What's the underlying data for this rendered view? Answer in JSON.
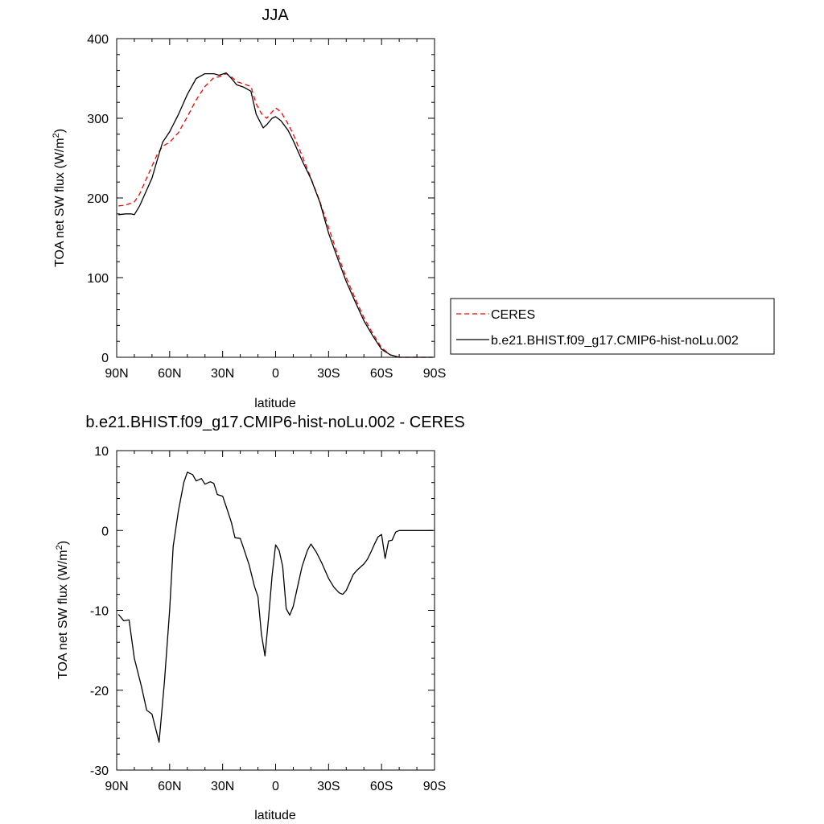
{
  "chart_data": [
    {
      "type": "line",
      "title": "JJA",
      "xlabel": "latitude",
      "ylabel": "TOA net SW flux (W/m",
      "ylabel_sup": "2",
      "ylabel_close": ")",
      "xlim": [
        90,
        -90
      ],
      "ylim": [
        0,
        400
      ],
      "x_ticks": [
        90,
        60,
        30,
        0,
        -30,
        -60,
        -90
      ],
      "x_tick_labels": [
        "90N",
        "60N",
        "30N",
        "0",
        "30S",
        "60S",
        "90S"
      ],
      "y_ticks": [
        0,
        100,
        200,
        300,
        400
      ],
      "y_tick_labels": [
        "0",
        "100",
        "200",
        "300",
        "400"
      ],
      "grid": false,
      "legend_position": "right",
      "series": [
        {
          "name": "CERES",
          "color": "#ff0000",
          "dash": "dashed",
          "x": [
            89,
            85,
            80,
            77,
            73,
            70,
            67,
            64,
            60,
            55,
            50,
            45,
            40,
            35,
            32,
            28,
            25,
            22,
            18,
            14,
            11,
            8,
            5,
            2,
            0,
            -3,
            -7,
            -10,
            -15,
            -20,
            -25,
            -30,
            -35,
            -40,
            -45,
            -50,
            -55,
            -60,
            -65,
            -70,
            -75,
            -80,
            -85,
            -89
          ],
          "y": [
            190,
            191,
            195,
            205,
            225,
            240,
            255,
            265,
            270,
            282,
            302,
            323,
            340,
            351,
            352,
            356,
            352,
            346,
            343,
            340,
            318,
            306,
            300,
            308,
            313,
            308,
            293,
            280,
            253,
            225,
            196,
            163,
            130,
            100,
            74,
            50,
            30,
            12,
            3,
            0,
            0,
            0,
            0,
            0
          ]
        },
        {
          "name": "b.e21.BHIST.f09_g17.CMIP6-hist-noLu.002",
          "color": "#000000",
          "dash": "solid",
          "x": [
            89,
            85,
            82,
            80,
            77,
            73,
            70,
            67,
            64,
            60,
            55,
            50,
            45,
            40,
            35,
            32,
            28,
            25,
            22,
            18,
            14,
            11,
            7,
            5,
            2,
            0,
            -3,
            -7,
            -10,
            -15,
            -20,
            -25,
            -30,
            -35,
            -40,
            -45,
            -50,
            -55,
            -60,
            -65,
            -70,
            -75,
            -80,
            -85,
            -89
          ],
          "y": [
            179,
            180,
            180,
            179,
            190,
            210,
            225,
            248,
            270,
            283,
            305,
            330,
            350,
            356,
            356,
            354,
            357,
            350,
            342,
            339,
            334,
            305,
            288,
            292,
            300,
            302,
            297,
            285,
            272,
            247,
            224,
            195,
            156,
            125,
            95,
            70,
            46,
            27,
            10,
            3,
            0,
            0,
            0,
            0,
            0
          ]
        }
      ]
    },
    {
      "type": "line",
      "title": "b.e21.BHIST.f09_g17.CMIP6-hist-noLu.002 - CERES",
      "xlabel": "latitude",
      "ylabel": "TOA net SW flux (W/m",
      "ylabel_sup": "2",
      "ylabel_close": ")",
      "xlim": [
        90,
        -90
      ],
      "ylim": [
        -30,
        10
      ],
      "x_ticks": [
        90,
        60,
        30,
        0,
        -30,
        -60,
        -90
      ],
      "x_tick_labels": [
        "90N",
        "60N",
        "30N",
        "0",
        "30S",
        "60S",
        "90S"
      ],
      "y_ticks": [
        -30,
        -20,
        -10,
        0,
        10
      ],
      "y_tick_labels": [
        "-30",
        "-20",
        "-10",
        "0",
        "10"
      ],
      "grid": false,
      "series": [
        {
          "color": "#000000",
          "dash": "solid",
          "x": [
            89,
            86,
            83,
            80,
            76,
            73,
            70,
            66,
            63,
            60,
            58,
            55,
            52,
            50,
            47,
            45,
            42,
            40,
            37,
            35,
            33,
            30,
            28,
            25,
            23,
            20,
            18,
            15,
            12,
            10,
            8,
            6,
            4,
            2,
            0,
            -2,
            -4,
            -6,
            -8,
            -10,
            -12,
            -15,
            -18,
            -20,
            -23,
            -26,
            -30,
            -33,
            -36,
            -38,
            -40,
            -42,
            -44,
            -46,
            -48,
            -50,
            -52,
            -54,
            -56,
            -58,
            -60,
            -62,
            -64,
            -66,
            -68,
            -70,
            -72,
            -75,
            -80,
            -85,
            -89
          ],
          "y": [
            -10.5,
            -11.3,
            -11.2,
            -16,
            -19.5,
            -22.5,
            -23,
            -26.5,
            -19,
            -10,
            -2,
            2.5,
            6,
            7.3,
            7,
            6.2,
            6.5,
            5.8,
            6.1,
            5.9,
            4.5,
            4.3,
            3,
            1,
            -0.9,
            -1,
            -2.3,
            -4.3,
            -7,
            -8.3,
            -13,
            -15.7,
            -11,
            -5.7,
            -1.8,
            -2.5,
            -4.5,
            -9.8,
            -10.6,
            -9.5,
            -7.5,
            -4.5,
            -2.5,
            -1.7,
            -2.7,
            -4,
            -6,
            -7.1,
            -7.8,
            -8,
            -7.5,
            -6.5,
            -5.5,
            -5,
            -4.6,
            -4.2,
            -3.6,
            -2.7,
            -1.7,
            -0.8,
            -0.5,
            -3.5,
            -1.3,
            -1.2,
            -0.2,
            0,
            0,
            0,
            0,
            0,
            0
          ]
        }
      ]
    }
  ]
}
